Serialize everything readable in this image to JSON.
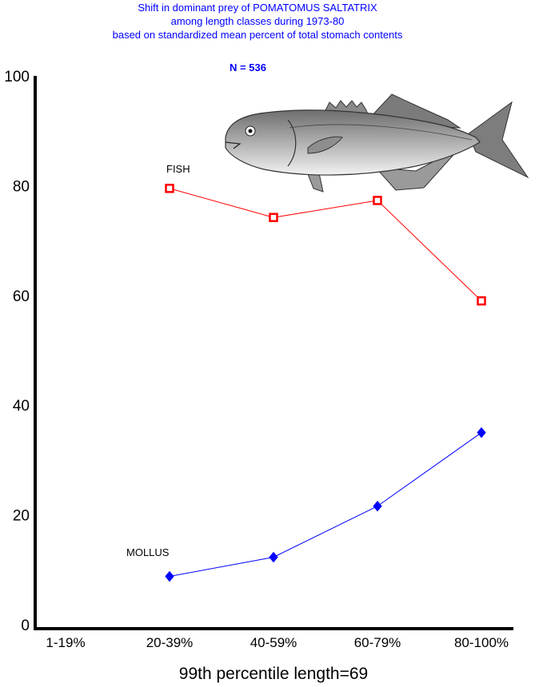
{
  "chart_data": {
    "type": "line",
    "title_lines": [
      "Shift in dominant prey of POMATOMUS SALTATRIX",
      "among length classes during 1973-80",
      "based on standardized mean percent of  total stomach contents"
    ],
    "annotation": "N = 536",
    "xlabel": "99th percentile  length=69",
    "ylabel": "",
    "ylim": [
      0,
      100
    ],
    "y_ticks": [
      "0",
      "20",
      "40",
      "60",
      "80",
      "100"
    ],
    "categories": [
      "1-19%",
      "20-39%",
      "40-59%",
      "60-79%",
      "80-100%"
    ],
    "series": [
      {
        "name": "FISH",
        "color": "#ff0000",
        "marker": "square",
        "values": [
          null,
          79.5,
          74.2,
          77.3,
          59.0
        ]
      },
      {
        "name": "MOLLUS",
        "color": "#0000ff",
        "marker": "diamond",
        "values": [
          null,
          8.8,
          12.3,
          21.6,
          35.0
        ]
      }
    ],
    "grid": false,
    "illustration": "bluefish-drawing"
  }
}
